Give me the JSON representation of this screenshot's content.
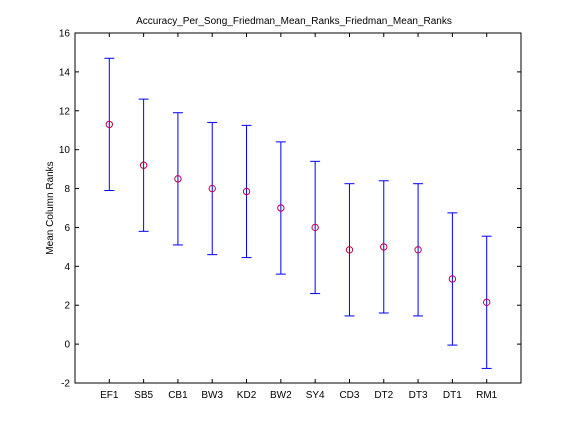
{
  "chart_data": {
    "type": "scatter",
    "title": "Accuracy_Per_Song_Friedman_Mean_Ranks_Friedman_Mean_Ranks",
    "xlabel": "",
    "ylabel": "Mean Column Ranks",
    "categories": [
      "EF1",
      "SB5",
      "CB1",
      "BW3",
      "KD2",
      "BW2",
      "SY4",
      "CD3",
      "DT2",
      "DT3",
      "DT1",
      "RM1"
    ],
    "series": [
      {
        "values": [
          11.3,
          9.2,
          8.5,
          8.0,
          7.85,
          7.0,
          6.0,
          4.85,
          5.0,
          4.85,
          3.35,
          2.15
        ],
        "lower": [
          7.9,
          5.8,
          5.1,
          4.6,
          4.45,
          3.6,
          2.6,
          1.45,
          1.6,
          1.45,
          -0.05,
          -1.25
        ],
        "upper": [
          14.7,
          12.6,
          11.9,
          11.4,
          11.25,
          10.4,
          9.4,
          8.25,
          8.4,
          8.25,
          6.75,
          5.55
        ]
      }
    ],
    "ylim": [
      -2,
      16
    ],
    "yticks": [
      "-2",
      "0",
      "2",
      "4",
      "6",
      "8",
      "10",
      "12",
      "14",
      "16"
    ],
    "grid": false,
    "colors": {
      "errorbar": "#0000ff",
      "marker": "#c0004a",
      "axes": "#000000"
    },
    "marker": "circle"
  }
}
